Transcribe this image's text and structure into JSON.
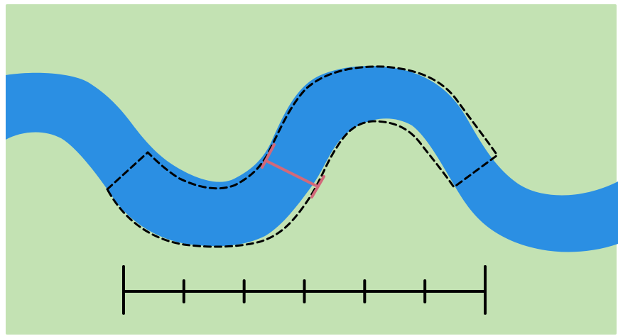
{
  "colors": {
    "land": "#c3e2b3",
    "river": "#2b8fe3",
    "outline": "#000000",
    "width_marker": "#d2697a",
    "scale_bar": "#000000"
  },
  "scale_bar": {
    "divisions": 6
  },
  "icons": [
    "river-shape",
    "dashed-river-segment-outline",
    "river-width-marker",
    "scale-bar"
  ]
}
